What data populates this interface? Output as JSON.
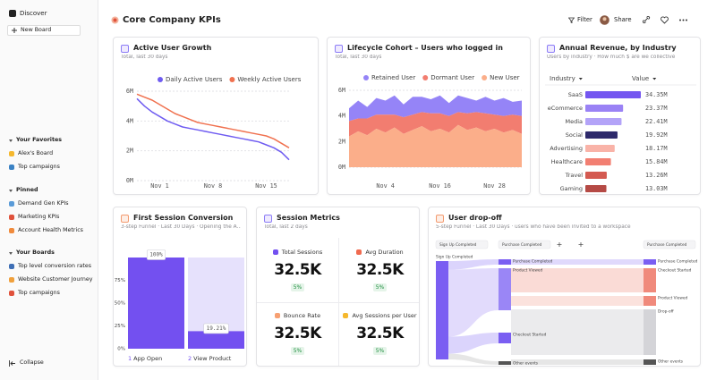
{
  "sidebar": {
    "discover": "Discover",
    "new_board": "New Board",
    "sections": [
      {
        "title": "Your Favorites",
        "items": [
          "Alex's Board",
          "Top campaigns"
        ]
      },
      {
        "title": "Pinned",
        "items": [
          "Demand Gen KPIs",
          "Marketing KPIs",
          "Account Health Metrics"
        ]
      },
      {
        "title": "Your Boards",
        "items": [
          "Top level conversion rates",
          "Website Customer Journey",
          "Top campaigns"
        ]
      }
    ],
    "collapse": "Collapse"
  },
  "header": {
    "title": "Core Company KPIs",
    "filter": "Filter",
    "share": "Share"
  },
  "chart_data": [
    {
      "type": "line",
      "title": "Active User Growth",
      "subtitle": "Total, last 30 days",
      "categories": [
        null,
        null,
        null,
        "Nov 1",
        null,
        null,
        null,
        null,
        null,
        null,
        "Nov 8",
        null,
        null,
        null,
        null,
        null,
        null,
        "Nov 15",
        null,
        null,
        null
      ],
      "series": [
        {
          "name": "Daily Active Users",
          "color": "#6f5cf1",
          "values": [
            5500000,
            5000000,
            4600000,
            4300000,
            4000000,
            3800000,
            3600000,
            3500000,
            3400000,
            3300000,
            3200000,
            3100000,
            3000000,
            2900000,
            2800000,
            2700000,
            2600000,
            2400000,
            2200000,
            1900000,
            1400000
          ]
        },
        {
          "name": "Weekly Active Users",
          "color": "#f0714f",
          "values": [
            5800000,
            5600000,
            5400000,
            5100000,
            4800000,
            4500000,
            4300000,
            4100000,
            3900000,
            3800000,
            3700000,
            3600000,
            3500000,
            3400000,
            3300000,
            3200000,
            3100000,
            3000000,
            2800000,
            2500000,
            2200000
          ]
        }
      ],
      "ylim": [
        0,
        6000000
      ],
      "yticks": [
        {
          "value": 0,
          "label": "0M"
        },
        {
          "value": 2000000,
          "label": "2M"
        },
        {
          "value": 4000000,
          "label": "4M"
        },
        {
          "value": 6000000,
          "label": "6M"
        }
      ],
      "grid": true
    },
    {
      "type": "area",
      "stacked": true,
      "title": "Lifecycle Cohort – Users who logged in",
      "subtitle": "Total, last 30 days",
      "categories": [
        null,
        null,
        null,
        null,
        "Nov 4",
        null,
        null,
        null,
        null,
        null,
        "Nov 16",
        null,
        null,
        null,
        null,
        null,
        "Nov 28",
        null,
        null,
        null
      ],
      "series": [
        {
          "name": "Retained User",
          "color": "#9584f7",
          "values": [
            1000000,
            1400000,
            900000,
            1300000,
            1100000,
            1500000,
            1000000,
            1400000,
            1200000,
            1100000,
            1400000,
            1000000,
            1300000,
            1200000,
            900000,
            1300000,
            1100000,
            1400000,
            1000000,
            1200000
          ]
        },
        {
          "name": "Dormant User",
          "color": "#f27d70",
          "values": [
            1200000,
            1000000,
            1300000,
            1100000,
            1400000,
            1000000,
            1300000,
            1200000,
            1100000,
            1400000,
            1200000,
            1300000,
            1000000,
            1300000,
            1200000,
            1400000,
            1100000,
            1300000,
            1200000,
            1400000
          ]
        },
        {
          "name": "New User",
          "color": "#fbae8a",
          "values": [
            2400000,
            2800000,
            2500000,
            3000000,
            2700000,
            3100000,
            2600000,
            2900000,
            3200000,
            2800000,
            3000000,
            2700000,
            3300000,
            2900000,
            3100000,
            2800000,
            3000000,
            2700000,
            2900000,
            2600000
          ]
        }
      ],
      "ylim": [
        0,
        6000000
      ],
      "yticks": [
        {
          "value": 0,
          "label": "0M"
        },
        {
          "value": 2000000,
          "label": "2M"
        },
        {
          "value": 4000000,
          "label": "4M"
        },
        {
          "value": 6000000,
          "label": "6M"
        }
      ],
      "grid": true
    },
    {
      "type": "hbar",
      "title": "Annual Revenue, by Industry",
      "subtitle": "Users by industry · How much $ are we collective",
      "column_headers": [
        "Industry",
        "Value"
      ],
      "categories": [
        "SaaS",
        "eCommerce",
        "Media",
        "Social",
        "Advertising",
        "Healthcare",
        "Travel",
        "Gaming"
      ],
      "values": [
        34350000,
        23370000,
        22410000,
        19920000,
        18170000,
        15840000,
        13260000,
        13030000
      ],
      "value_labels": [
        "34.35M",
        "23.37M",
        "22.41M",
        "19.92M",
        "18.17M",
        "15.84M",
        "13.26M",
        "13.03M"
      ],
      "colors": [
        "#7456f0",
        "#9a82f5",
        "#b3a3f8",
        "#2e2a6b",
        "#f9b3a8",
        "#f27f72",
        "#d45a51",
        "#b54a45"
      ]
    },
    {
      "type": "funnel",
      "title": "First Session Conversion",
      "subtitle": "3-step Funnel · Last 30 Days · Opening the A...",
      "steps": [
        "1",
        "2"
      ],
      "categories": [
        "App Open",
        "View Product"
      ],
      "values": [
        100,
        19.21
      ],
      "value_labels": [
        "100%",
        "19.21%"
      ],
      "ylim": [
        0,
        100
      ],
      "yticks": [
        {
          "value": 0,
          "label": "0%"
        },
        {
          "value": 25,
          "label": "25%"
        },
        {
          "value": 50,
          "label": "50%"
        },
        {
          "value": 75,
          "label": "75%"
        }
      ],
      "color": "#7350f0",
      "previous_color": "#e6e1fc"
    }
  ],
  "session_metrics": {
    "title": "Session Metrics",
    "subtitle": "Total, last 2 days",
    "metrics": [
      {
        "label": "Total Sessions",
        "value": "32.5K",
        "change": "5%",
        "color": "#7350f0"
      },
      {
        "label": "Avg Duration",
        "value": "32.5K",
        "change": "5%",
        "color": "#f06a4f"
      },
      {
        "label": "Bounce Rate",
        "value": "32.5K",
        "change": "5%",
        "color": "#f7a072"
      },
      {
        "label": "Avg Sessions per User",
        "value": "32.5K",
        "change": "5%",
        "color": "#f5b82e"
      }
    ]
  },
  "drop_off": {
    "title": "User drop-off",
    "subtitle": "5-step Funnel · Last 30 Days · users who have been invited to a workspace",
    "columns": [
      {
        "header": "Sign Up Completed",
        "nodes": [
          "Sign Up Completed"
        ]
      },
      {
        "header": "Purchase Completed",
        "nodes": [
          "Purchase Completed",
          "Product Viewed",
          "Checkout Started",
          "Other events"
        ]
      },
      {
        "header": "Purchase Completed",
        "nodes": [
          "Purchase Completed",
          "Checkout Started",
          "Product Viewed",
          "Drop-off",
          "Other events"
        ]
      }
    ]
  }
}
